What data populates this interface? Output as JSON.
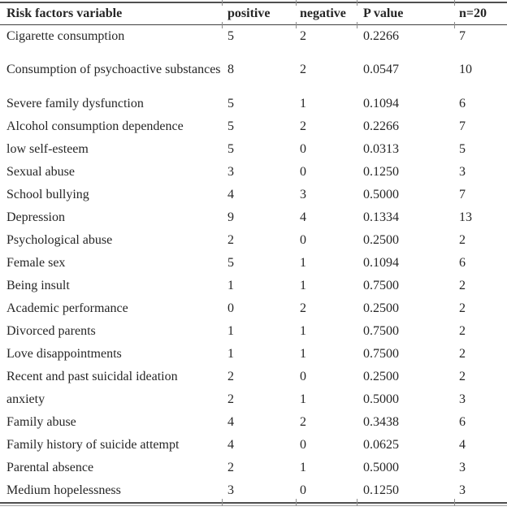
{
  "table": {
    "headers": {
      "variable": "Risk factors variable",
      "positive": "positive",
      "negative": "negative",
      "p_value": "P value",
      "n": "n=20"
    },
    "rows": [
      {
        "variable": "Cigarette consumption",
        "positive": "5",
        "negative": "2",
        "p_value": "0.2266",
        "n": "7"
      },
      {
        "variable": "Consumption of psychoactive substances",
        "positive": "8",
        "negative": "2",
        "p_value": "0.0547",
        "n": "10"
      },
      {
        "variable": "Severe family dysfunction",
        "positive": "5",
        "negative": "1",
        "p_value": "0.1094",
        "n": "6"
      },
      {
        "variable": "Alcohol consumption dependence",
        "positive": "5",
        "negative": "2",
        "p_value": "0.2266",
        "n": "7"
      },
      {
        "variable": "low self-esteem",
        "positive": "5",
        "negative": "0",
        "p_value": "0.0313",
        "n": "5"
      },
      {
        "variable": "Sexual abuse",
        "positive": "3",
        "negative": "0",
        "p_value": "0.1250",
        "n": "3"
      },
      {
        "variable": "School bullying",
        "positive": "4",
        "negative": "3",
        "p_value": "0.5000",
        "n": "7"
      },
      {
        "variable": "Depression",
        "positive": "9",
        "negative": "4",
        "p_value": "0.1334",
        "n": "13"
      },
      {
        "variable": "Psychological abuse",
        "positive": "2",
        "negative": "0",
        "p_value": "0.2500",
        "n": "2"
      },
      {
        "variable": "Female sex",
        "positive": "5",
        "negative": "1",
        "p_value": "0.1094",
        "n": "6"
      },
      {
        "variable": "Being insult",
        "positive": "1",
        "negative": "1",
        "p_value": "0.7500",
        "n": "2"
      },
      {
        "variable": "Academic performance",
        "positive": "0",
        "negative": "2",
        "p_value": "0.2500",
        "n": "2"
      },
      {
        "variable": "Divorced parents",
        "positive": "1",
        "negative": "1",
        "p_value": "0.7500",
        "n": "2"
      },
      {
        "variable": "Love disappointments",
        "positive": "1",
        "negative": "1",
        "p_value": "0.7500",
        "n": "2"
      },
      {
        "variable": "Recent and past suicidal ideation",
        "positive": "2",
        "negative": "0",
        "p_value": "0.2500",
        "n": "2"
      },
      {
        "variable": "anxiety",
        "positive": "2",
        "negative": "1",
        "p_value": "0.5000",
        "n": "3"
      },
      {
        "variable": "Family abuse",
        "positive": "4",
        "negative": "2",
        "p_value": "0.3438",
        "n": "6"
      },
      {
        "variable": "Family history of suicide attempt",
        "positive": "4",
        "negative": "0",
        "p_value": "0.0625",
        "n": "4"
      },
      {
        "variable": "Parental absence",
        "positive": "2",
        "negative": "1",
        "p_value": "0.5000",
        "n": "3"
      },
      {
        "variable": "Medium hopelessness",
        "positive": "3",
        "negative": "0",
        "p_value": "0.1250",
        "n": "3"
      }
    ]
  }
}
